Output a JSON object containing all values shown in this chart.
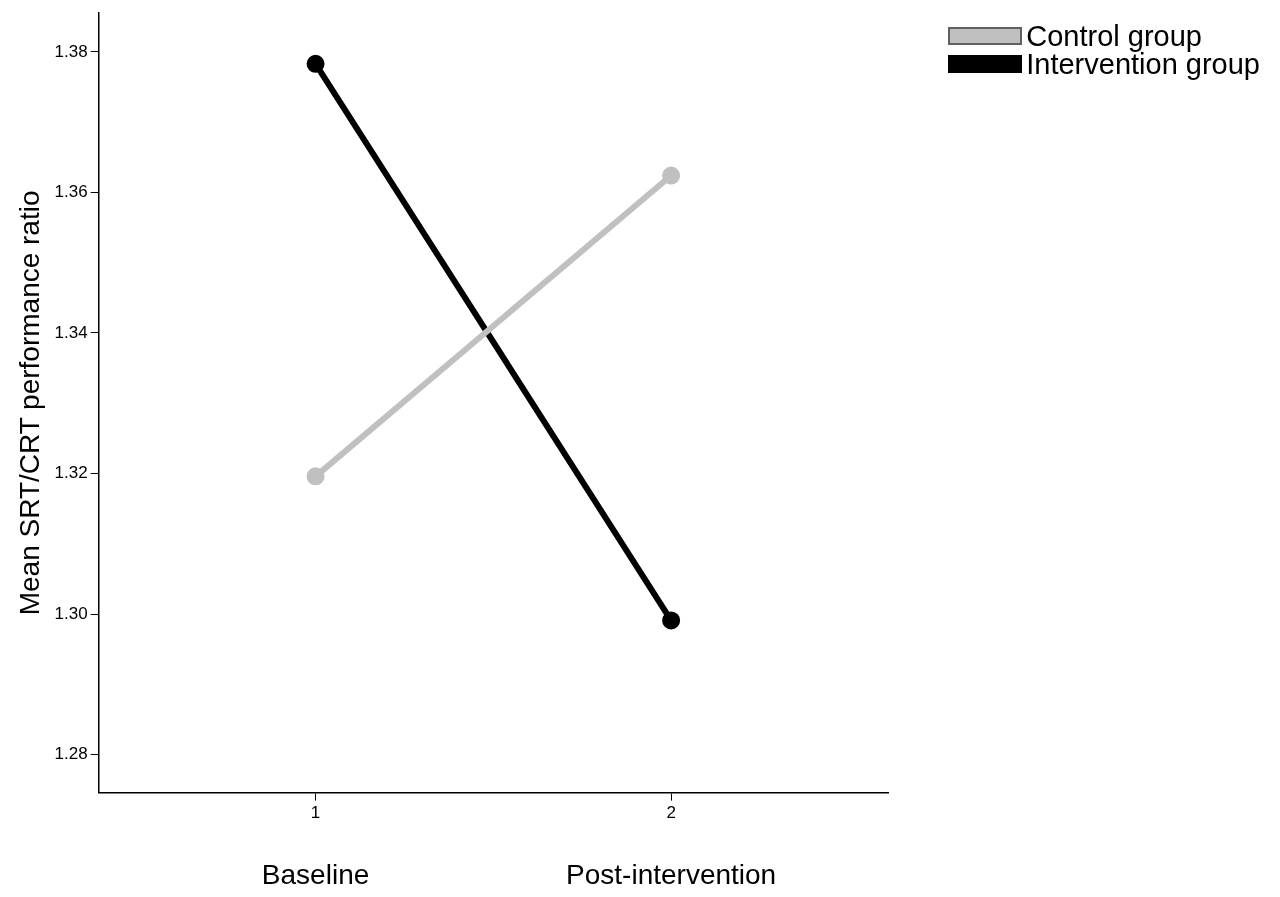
{
  "chart_data": {
    "type": "line",
    "ylabel": "Mean SRT/CRT performance ratio",
    "categories": [
      "1",
      "2"
    ],
    "series": [
      {
        "name": "Control group",
        "color": "#c0c0c0",
        "values": [
          1.3196,
          1.3624
        ]
      },
      {
        "name": "Intervention group",
        "color": "#000000",
        "values": [
          1.3783,
          1.2991
        ]
      }
    ],
    "ylim": [
      1.2746,
      1.3855
    ],
    "yticks": [
      1.28,
      {
        "value": 1.3,
        "label": "1.30"
      },
      1.32,
      1.34,
      1.36,
      1.38
    ],
    "annotations": [
      "Baseline",
      "Post-intervention"
    ],
    "grid": false,
    "legend": "top right",
    "marker": "circle",
    "line_style": "solid"
  }
}
